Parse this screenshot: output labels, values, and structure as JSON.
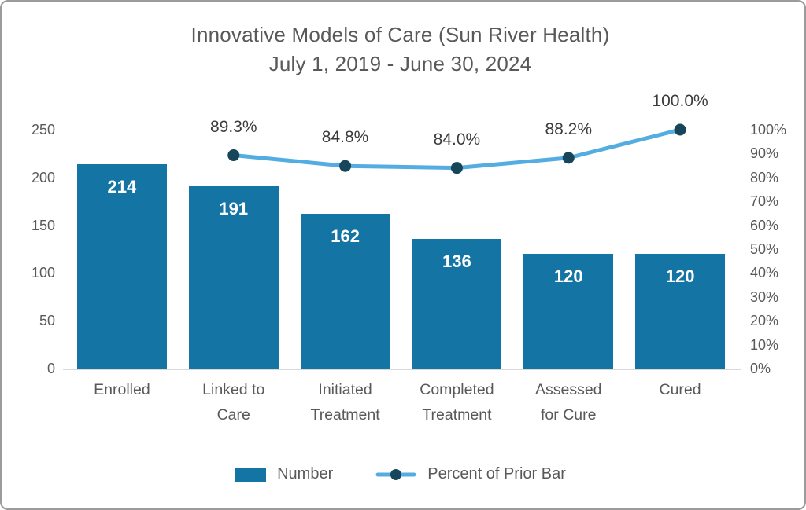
{
  "title": {
    "line1": "Innovative Models of Care (Sun River Health)",
    "line2": "July 1, 2019 - June 30, 2024"
  },
  "legend": {
    "number_label": "Number",
    "percent_label": "Percent of Prior Bar",
    "position": "bottom"
  },
  "colors": {
    "bar": "#1474a3",
    "line": "#53ade1",
    "marker": "#17455a",
    "text": "#595959",
    "pct_label_text": "#3b3b3b",
    "bar_label_text": "#ffffff",
    "grid": "#d9d9d9"
  },
  "chart_data": {
    "type": "bar",
    "subtype": "combo-bar-line-dual-axis",
    "title": "Innovative Models of Care (Sun River Health)",
    "subtitle": "July 1, 2019 - June 30, 2024",
    "categories": [
      "Enrolled",
      "Linked to Care",
      "Initiated Treatment",
      "Completed Treatment",
      "Assessed for Cure",
      "Cured"
    ],
    "categories_display": [
      [
        "Enrolled"
      ],
      [
        "Linked to",
        "Care"
      ],
      [
        "Initiated",
        "Treatment"
      ],
      [
        "Completed",
        "Treatment"
      ],
      [
        "Assessed",
        "for Cure"
      ],
      [
        "Cured"
      ]
    ],
    "series": [
      {
        "name": "Number",
        "type": "bar",
        "axis": "left",
        "values": [
          214,
          191,
          162,
          136,
          120,
          120
        ],
        "data_labels": [
          "214",
          "191",
          "162",
          "136",
          "120",
          "120"
        ]
      },
      {
        "name": "Percent of Prior Bar",
        "type": "line",
        "axis": "right",
        "category_indices": [
          1,
          2,
          3,
          4,
          5
        ],
        "values": [
          89.3,
          84.8,
          84.0,
          88.2,
          100.0
        ],
        "data_labels": [
          "89.3%",
          "84.8%",
          "84.0%",
          "88.2%",
          "100.0%"
        ]
      }
    ],
    "left_axis": {
      "min": 0,
      "max": 250,
      "tick_values": [
        0,
        50,
        100,
        150,
        200,
        250
      ],
      "tick_labels": [
        "0",
        "50",
        "100",
        "150",
        "200",
        "250"
      ]
    },
    "right_axis": {
      "min": 0,
      "max": 100,
      "tick_values": [
        0,
        10,
        20,
        30,
        40,
        50,
        60,
        70,
        80,
        90,
        100
      ],
      "tick_labels": [
        "0%",
        "10%",
        "20%",
        "30%",
        "40%",
        "50%",
        "60%",
        "70%",
        "80%",
        "90%",
        "100%"
      ]
    },
    "grid": "off",
    "legend_position": "bottom"
  }
}
